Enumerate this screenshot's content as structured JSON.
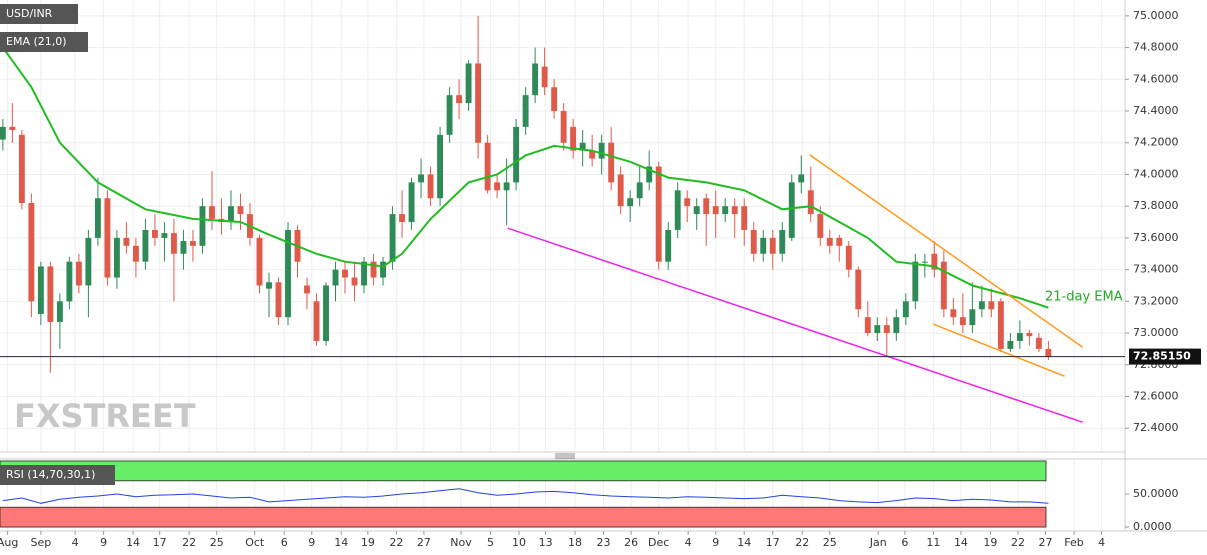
{
  "chart_data": {
    "type": "candlestick",
    "symbol": "USD/INR",
    "indicator_label": "EMA (21,0)",
    "rsi_label": "RSI (14,70,30,1)",
    "watermark": "FXSTREET",
    "annotation": "21-day EMA",
    "up_color": "#2e8a57",
    "down_color": "#e05a4a",
    "xlim": [
      -0.3,
      118.06
    ],
    "ylim": [
      72.25,
      75.1
    ],
    "grid": true,
    "xticks": [
      {
        "value": 0.5,
        "label": "Aug"
      },
      {
        "value": 4,
        "label": "Sep"
      },
      {
        "value": 7.6,
        "label": "4"
      },
      {
        "value": 10.6,
        "label": "9"
      },
      {
        "value": 13.7,
        "label": "14"
      },
      {
        "value": 16.5,
        "label": "17"
      },
      {
        "value": 19.6,
        "label": "22"
      },
      {
        "value": 22.5,
        "label": "25"
      },
      {
        "value": 26.5,
        "label": "Oct"
      },
      {
        "value": 29.6,
        "label": "6"
      },
      {
        "value": 32.5,
        "label": "9"
      },
      {
        "value": 35.6,
        "label": "14"
      },
      {
        "value": 38.4,
        "label": "19"
      },
      {
        "value": 41.4,
        "label": "22"
      },
      {
        "value": 44.3,
        "label": "27"
      },
      {
        "value": 48.2,
        "label": "Nov"
      },
      {
        "value": 51.3,
        "label": "5"
      },
      {
        "value": 54.3,
        "label": "10"
      },
      {
        "value": 57.1,
        "label": "13"
      },
      {
        "value": 60.2,
        "label": "18"
      },
      {
        "value": 63.2,
        "label": "23"
      },
      {
        "value": 66.1,
        "label": "26"
      },
      {
        "value": 69,
        "label": "Dec"
      },
      {
        "value": 72.1,
        "label": "4"
      },
      {
        "value": 75,
        "label": "9"
      },
      {
        "value": 78,
        "label": "14"
      },
      {
        "value": 81,
        "label": "17"
      },
      {
        "value": 84.1,
        "label": "22"
      },
      {
        "value": 87,
        "label": "25"
      },
      {
        "value": 92.1,
        "label": "Jan"
      },
      {
        "value": 94.9,
        "label": "6"
      },
      {
        "value": 97.9,
        "label": "11"
      },
      {
        "value": 100.8,
        "label": "14"
      },
      {
        "value": 103.9,
        "label": "19"
      },
      {
        "value": 106.8,
        "label": "22"
      },
      {
        "value": 109.7,
        "label": "27"
      },
      {
        "value": 112.7,
        "label": "Feb"
      },
      {
        "value": 115.6,
        "label": "4"
      }
    ],
    "yticks": [
      {
        "value": 72.4,
        "label": "72.4000"
      },
      {
        "value": 72.6,
        "label": "72.6000"
      },
      {
        "value": 72.8,
        "label": "72.8000"
      },
      {
        "value": 73.0,
        "label": "73.0000"
      },
      {
        "value": 73.2,
        "label": "73.2000"
      },
      {
        "value": 73.4,
        "label": "73.4000"
      },
      {
        "value": 73.6,
        "label": "73.6000"
      },
      {
        "value": 73.8,
        "label": "73.8000"
      },
      {
        "value": 74.0,
        "label": "74.0000"
      },
      {
        "value": 74.2,
        "label": "74.2000"
      },
      {
        "value": 74.4,
        "label": "74.4000"
      },
      {
        "value": 74.6,
        "label": "74.6000"
      },
      {
        "value": 74.8,
        "label": "74.8000"
      },
      {
        "value": 75.0,
        "label": "75.0000"
      }
    ],
    "last_price": {
      "value": 72.8515,
      "label": "72.85150"
    },
    "open": [
      74.22,
      74.3,
      74.25,
      73.82,
      73.12,
      73.42,
      73.07,
      73.2,
      73.45,
      73.3,
      73.6,
      73.85,
      73.35,
      73.6,
      73.55,
      73.45,
      73.65,
      73.6,
      73.63,
      73.5,
      73.58,
      73.55,
      73.8,
      73.72,
      73.7,
      73.8,
      73.75,
      73.6,
      73.28,
      73.32,
      73.1,
      73.65,
      73.3,
      73.2,
      72.95,
      73.3,
      73.4,
      73.35,
      73.3,
      73.45,
      73.35,
      73.45,
      73.75,
      73.7,
      73.95,
      74.0,
      73.85,
      74.25,
      74.5,
      74.45,
      74.7,
      74.2,
      73.95,
      73.9,
      73.95,
      74.3,
      74.5,
      74.68,
      74.55,
      74.4,
      74.3,
      74.15,
      74.15,
      74.1,
      74.2,
      74.0,
      73.8,
      73.85,
      73.95,
      74.05,
      73.45,
      73.65,
      73.85,
      73.75,
      73.85,
      73.8,
      73.75,
      73.8,
      73.8,
      73.65,
      73.5,
      73.6,
      73.5,
      73.6,
      73.95,
      73.9,
      73.75,
      73.6,
      73.6,
      73.55,
      73.4,
      73.1,
      73.0,
      73.05,
      73.0,
      73.1,
      73.2,
      73.45,
      73.5,
      73.45,
      73.15,
      73.1,
      73.05,
      73.15,
      73.2,
      73.2,
      72.9,
      72.95,
      73.0,
      72.97,
      72.9
    ],
    "high": [
      74.35,
      74.45,
      74.28,
      73.88,
      73.45,
      73.45,
      73.25,
      73.48,
      73.5,
      73.65,
      73.98,
      73.9,
      73.65,
      73.7,
      73.6,
      73.72,
      73.75,
      73.7,
      73.72,
      73.65,
      73.65,
      73.85,
      74.02,
      73.85,
      73.9,
      73.88,
      73.82,
      73.62,
      73.38,
      73.35,
      73.7,
      73.68,
      73.35,
      73.25,
      73.32,
      73.45,
      73.45,
      73.45,
      73.48,
      73.5,
      73.48,
      73.8,
      73.9,
      73.98,
      74.1,
      74.05,
      74.3,
      74.55,
      74.6,
      74.72,
      75.0,
      74.25,
      74.0,
      74.1,
      74.35,
      74.55,
      74.8,
      74.8,
      74.6,
      74.45,
      74.35,
      74.28,
      74.25,
      74.25,
      74.3,
      74.05,
      73.9,
      74.05,
      74.15,
      74.08,
      73.7,
      73.95,
      73.9,
      73.85,
      73.88,
      73.9,
      73.85,
      73.85,
      73.85,
      73.7,
      73.65,
      73.65,
      73.7,
      74.0,
      74.12,
      74.05,
      73.8,
      73.65,
      73.62,
      73.58,
      73.42,
      73.2,
      73.1,
      73.1,
      73.15,
      73.25,
      73.5,
      73.5,
      73.58,
      73.52,
      73.22,
      73.25,
      73.32,
      73.3,
      73.28,
      73.22,
      73.0,
      73.08,
      73.02,
      73.0,
      72.95
    ],
    "low": [
      74.15,
      74.2,
      73.78,
      73.1,
      73.05,
      72.75,
      72.9,
      73.15,
      73.25,
      73.1,
      73.55,
      73.3,
      73.28,
      73.5,
      73.35,
      73.4,
      73.55,
      73.45,
      73.2,
      73.4,
      73.45,
      73.5,
      73.65,
      73.62,
      73.65,
      73.65,
      73.55,
      73.25,
      73.1,
      73.05,
      73.05,
      73.35,
      73.15,
      72.92,
      72.92,
      73.2,
      73.25,
      73.2,
      73.25,
      73.3,
      73.3,
      73.4,
      73.6,
      73.65,
      73.85,
      73.8,
      73.8,
      74.2,
      74.35,
      74.4,
      74.1,
      73.88,
      73.85,
      73.68,
      73.9,
      74.25,
      74.45,
      74.5,
      74.35,
      74.15,
      74.1,
      74.05,
      74.05,
      74.0,
      73.9,
      73.75,
      73.7,
      73.8,
      73.9,
      73.4,
      73.4,
      73.6,
      73.7,
      73.65,
      73.55,
      73.6,
      73.7,
      73.6,
      73.55,
      73.45,
      73.45,
      73.4,
      73.45,
      73.58,
      73.88,
      73.7,
      73.55,
      73.5,
      73.45,
      73.35,
      73.1,
      72.98,
      72.95,
      72.85,
      72.95,
      73.05,
      73.15,
      73.35,
      73.35,
      73.1,
      73.05,
      73.0,
      73.0,
      73.1,
      73.1,
      72.88,
      72.88,
      72.9,
      72.92,
      72.88,
      72.83
    ],
    "close": [
      74.3,
      74.28,
      73.82,
      73.2,
      73.42,
      73.07,
      73.2,
      73.45,
      73.3,
      73.6,
      73.85,
      73.35,
      73.6,
      73.55,
      73.45,
      73.65,
      73.6,
      73.63,
      73.5,
      73.58,
      73.55,
      73.8,
      73.72,
      73.7,
      73.8,
      73.75,
      73.6,
      73.3,
      73.32,
      73.1,
      73.65,
      73.45,
      73.25,
      72.95,
      73.3,
      73.4,
      73.35,
      73.3,
      73.45,
      73.35,
      73.45,
      73.75,
      73.7,
      73.95,
      74.0,
      73.85,
      74.25,
      74.5,
      74.45,
      74.7,
      74.2,
      73.9,
      73.9,
      73.95,
      74.3,
      74.5,
      74.7,
      74.55,
      74.4,
      74.2,
      74.15,
      74.2,
      74.1,
      74.2,
      73.95,
      73.8,
      73.85,
      73.95,
      74.05,
      73.45,
      73.65,
      73.9,
      73.8,
      73.8,
      73.75,
      73.75,
      73.8,
      73.75,
      73.65,
      73.5,
      73.6,
      73.5,
      73.65,
      73.95,
      74.0,
      73.75,
      73.6,
      73.55,
      73.55,
      73.4,
      73.15,
      73.0,
      73.05,
      73.0,
      73.1,
      73.2,
      73.45,
      73.45,
      73.4,
      73.15,
      73.1,
      73.05,
      73.15,
      73.2,
      73.15,
      72.9,
      72.95,
      73.0,
      72.98,
      72.9,
      72.85
    ],
    "ema": {
      "name": "EMA (21,0)",
      "color": "#22bb22",
      "x": [
        0,
        3,
        6,
        10,
        15,
        20,
        25,
        28,
        33,
        36,
        40,
        42,
        45,
        49,
        52,
        55,
        58,
        62,
        66,
        70,
        74,
        78,
        82,
        85,
        88,
        91,
        94,
        98,
        102,
        107,
        110
      ],
      "values": [
        74.8,
        74.55,
        74.2,
        73.95,
        73.78,
        73.72,
        73.7,
        73.62,
        73.5,
        73.45,
        73.42,
        73.5,
        73.72,
        73.95,
        74.0,
        74.12,
        74.18,
        74.15,
        74.08,
        73.98,
        73.95,
        73.9,
        73.78,
        73.8,
        73.7,
        73.6,
        73.45,
        73.42,
        73.3,
        73.22,
        73.16
      ]
    },
    "trend_lines": [
      {
        "color": "#ff9a1a",
        "x": [
          84.9,
          113.6
        ],
        "values": [
          74.123,
          72.911
        ]
      },
      {
        "color": "#ff9a1a",
        "x": [
          97.9,
          111.7
        ],
        "values": [
          73.056,
          72.728
        ]
      },
      {
        "color": "#ee22ee",
        "x": [
          53.1,
          113.6
        ],
        "values": [
          73.662,
          72.438
        ]
      }
    ],
    "rsi": {
      "color": "#2244dd",
      "ylim": [
        -6,
        101.5
      ],
      "yticks": [
        {
          "value": 0,
          "label": "0.0000"
        },
        {
          "value": 50,
          "label": "50.0000"
        }
      ],
      "bands": [
        {
          "from": 70,
          "to": 100,
          "color": "#66ee66"
        },
        {
          "from": 0,
          "to": 30,
          "color": "#ff7777"
        }
      ],
      "x": [
        0,
        2,
        4,
        6,
        8,
        10,
        12,
        14,
        16,
        18,
        20,
        22,
        24,
        26,
        28,
        30,
        32,
        34,
        36,
        38,
        40,
        42,
        44,
        46,
        48,
        50,
        52,
        54,
        56,
        58,
        60,
        62,
        64,
        66,
        68,
        70,
        72,
        74,
        76,
        78,
        80,
        82,
        84,
        86,
        88,
        90,
        92,
        94,
        96,
        98,
        100,
        102,
        104,
        106,
        108,
        110
      ],
      "values": [
        40,
        44,
        36,
        42,
        45,
        47,
        50,
        46,
        48,
        49,
        50,
        47,
        44,
        45,
        38,
        40,
        42,
        44,
        46,
        45,
        47,
        50,
        52,
        55,
        58,
        52,
        48,
        50,
        53,
        54,
        52,
        49,
        47,
        46,
        45,
        44,
        46,
        45,
        44,
        43,
        44,
        48,
        46,
        44,
        40,
        38,
        37,
        40,
        44,
        43,
        40,
        42,
        41,
        38,
        38,
        36
      ]
    }
  }
}
